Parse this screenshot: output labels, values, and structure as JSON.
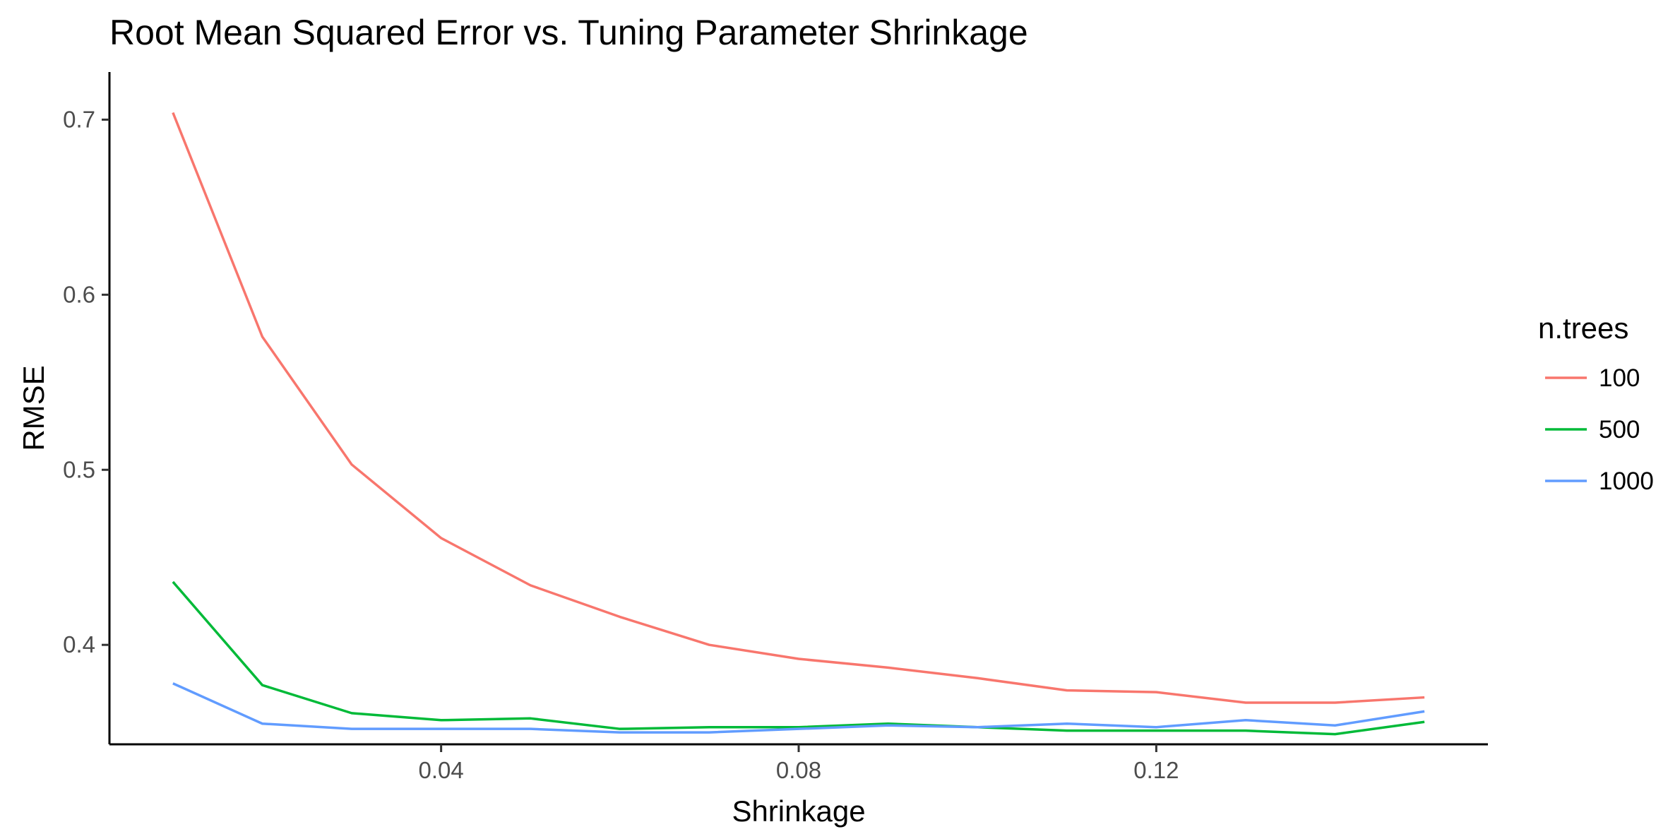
{
  "chart_data": {
    "type": "line",
    "title": "Root Mean Squared Error vs. Tuning Parameter Shrinkage",
    "xlabel": "Shrinkage",
    "ylabel": "RMSE",
    "x": [
      0.01,
      0.02,
      0.03,
      0.04,
      0.05,
      0.06,
      0.07,
      0.08,
      0.09,
      0.1,
      0.11,
      0.12,
      0.13,
      0.14,
      0.15
    ],
    "xlim": [
      0.0029,
      0.1571
    ],
    "ylim": [
      0.3432,
      0.7272
    ],
    "x_ticks": [
      {
        "value": 0.04,
        "label": "0.04"
      },
      {
        "value": 0.08,
        "label": "0.08"
      },
      {
        "value": 0.12,
        "label": "0.12"
      }
    ],
    "y_ticks": [
      {
        "value": 0.4,
        "label": "0.4"
      },
      {
        "value": 0.5,
        "label": "0.5"
      },
      {
        "value": 0.6,
        "label": "0.6"
      },
      {
        "value": 0.7,
        "label": "0.7"
      }
    ],
    "grid": false,
    "legend": {
      "title": "n.trees",
      "position": "right"
    },
    "series": [
      {
        "name": "100",
        "color": "#F8766D",
        "values": [
          0.704,
          0.576,
          0.503,
          0.461,
          0.434,
          0.416,
          0.4,
          0.392,
          0.387,
          0.381,
          0.374,
          0.373,
          0.367,
          0.367,
          0.37
        ]
      },
      {
        "name": "500",
        "color": "#00BA38",
        "values": [
          0.436,
          0.377,
          0.361,
          0.357,
          0.358,
          0.352,
          0.353,
          0.353,
          0.355,
          0.353,
          0.351,
          0.351,
          0.351,
          0.349,
          0.356
        ]
      },
      {
        "name": "1000",
        "color": "#619CFF",
        "values": [
          0.378,
          0.355,
          0.352,
          0.352,
          0.352,
          0.35,
          0.35,
          0.352,
          0.354,
          0.353,
          0.355,
          0.353,
          0.357,
          0.354,
          0.362
        ]
      }
    ]
  }
}
